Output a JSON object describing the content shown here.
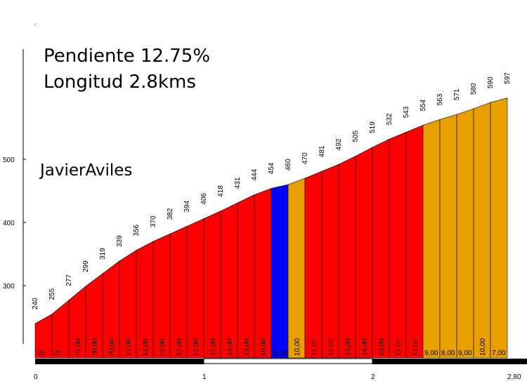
{
  "chart_data": {
    "type": "area",
    "title_lines": [
      "Pendiente 12.75%",
      "Longitud 2.8kms"
    ],
    "author": "JavierAviles",
    "x_ticks": [
      "0",
      "1",
      "2",
      "2,80"
    ],
    "x_tick_values": [
      0,
      1,
      2,
      2.8
    ],
    "y_ticks": [
      "300",
      "400",
      "500"
    ],
    "y_tick_values": [
      300,
      400,
      500
    ],
    "xlim": [
      0,
      2.8
    ],
    "x": [
      0,
      0.1,
      0.2,
      0.3,
      0.4,
      0.5,
      0.6,
      0.7,
      0.8,
      0.9,
      1.0,
      1.1,
      1.2,
      1.3,
      1.4,
      1.5,
      1.6,
      1.7,
      1.8,
      1.9,
      2.0,
      2.1,
      2.2,
      2.3,
      2.4,
      2.5,
      2.6,
      2.7,
      2.8
    ],
    "altitudes": [
      240,
      255,
      277,
      299,
      319,
      339,
      356,
      370,
      382,
      394,
      406,
      418,
      431,
      444,
      454,
      460,
      470,
      481,
      492,
      505,
      519,
      532,
      543,
      554,
      563,
      571,
      580,
      590,
      597
    ],
    "gradient_labels": [
      "15",
      "22",
      "22,00",
      "20,00",
      "20,00",
      "17,00",
      "14,00",
      "12,00",
      "12,00",
      "12,00",
      "12,00",
      "13,00",
      "13,00",
      "10,00",
      "6,00",
      "10,00",
      "11,00",
      "11,00",
      "13,00",
      "14,00",
      "13,00",
      "11,00",
      "11,00",
      "9,00",
      "8,00",
      "9,00",
      "10,00",
      "7,00"
    ],
    "segment_colors": [
      "red",
      "red",
      "red",
      "red",
      "red",
      "red",
      "red",
      "red",
      "red",
      "red",
      "red",
      "red",
      "red",
      "red",
      "blue",
      "orange",
      "red",
      "red",
      "red",
      "red",
      "red",
      "red",
      "red",
      "orange",
      "orange",
      "orange",
      "orange",
      "orange"
    ],
    "colors": {
      "red": "#ff0000",
      "orange": "#e8a000",
      "blue": "#0000ff"
    },
    "grid": false
  }
}
